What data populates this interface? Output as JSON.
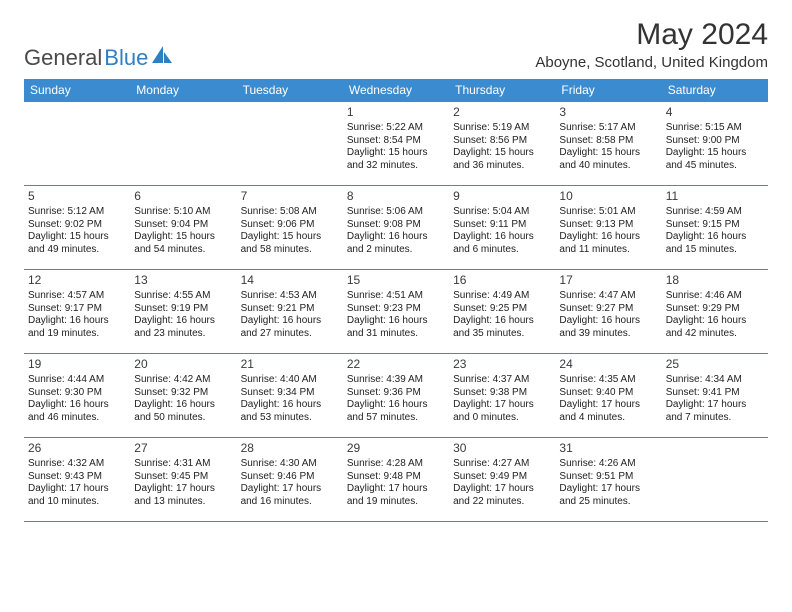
{
  "logo": {
    "word1": "General",
    "word2": "Blue",
    "iconColor": "#2f7fc5"
  },
  "title": "May 2024",
  "location": "Aboyne, Scotland, United Kingdom",
  "colors": {
    "headerBg": "#3b8bd0",
    "headerText": "#ffffff",
    "border": "#3b8bd0",
    "text": "#222222",
    "titleText": "#333333"
  },
  "typography": {
    "monthTitle_pt": 30,
    "location_pt": 15,
    "dayHeader_pt": 12,
    "dayNum_pt": 12,
    "body_pt": 10
  },
  "dayHeaders": [
    "Sunday",
    "Monday",
    "Tuesday",
    "Wednesday",
    "Thursday",
    "Friday",
    "Saturday"
  ],
  "weeks": [
    [
      null,
      null,
      null,
      {
        "d": "1",
        "sr": "5:22 AM",
        "ss": "8:54 PM",
        "dl": "15 hours and 32 minutes."
      },
      {
        "d": "2",
        "sr": "5:19 AM",
        "ss": "8:56 PM",
        "dl": "15 hours and 36 minutes."
      },
      {
        "d": "3",
        "sr": "5:17 AM",
        "ss": "8:58 PM",
        "dl": "15 hours and 40 minutes."
      },
      {
        "d": "4",
        "sr": "5:15 AM",
        "ss": "9:00 PM",
        "dl": "15 hours and 45 minutes."
      }
    ],
    [
      {
        "d": "5",
        "sr": "5:12 AM",
        "ss": "9:02 PM",
        "dl": "15 hours and 49 minutes."
      },
      {
        "d": "6",
        "sr": "5:10 AM",
        "ss": "9:04 PM",
        "dl": "15 hours and 54 minutes."
      },
      {
        "d": "7",
        "sr": "5:08 AM",
        "ss": "9:06 PM",
        "dl": "15 hours and 58 minutes."
      },
      {
        "d": "8",
        "sr": "5:06 AM",
        "ss": "9:08 PM",
        "dl": "16 hours and 2 minutes."
      },
      {
        "d": "9",
        "sr": "5:04 AM",
        "ss": "9:11 PM",
        "dl": "16 hours and 6 minutes."
      },
      {
        "d": "10",
        "sr": "5:01 AM",
        "ss": "9:13 PM",
        "dl": "16 hours and 11 minutes."
      },
      {
        "d": "11",
        "sr": "4:59 AM",
        "ss": "9:15 PM",
        "dl": "16 hours and 15 minutes."
      }
    ],
    [
      {
        "d": "12",
        "sr": "4:57 AM",
        "ss": "9:17 PM",
        "dl": "16 hours and 19 minutes."
      },
      {
        "d": "13",
        "sr": "4:55 AM",
        "ss": "9:19 PM",
        "dl": "16 hours and 23 minutes."
      },
      {
        "d": "14",
        "sr": "4:53 AM",
        "ss": "9:21 PM",
        "dl": "16 hours and 27 minutes."
      },
      {
        "d": "15",
        "sr": "4:51 AM",
        "ss": "9:23 PM",
        "dl": "16 hours and 31 minutes."
      },
      {
        "d": "16",
        "sr": "4:49 AM",
        "ss": "9:25 PM",
        "dl": "16 hours and 35 minutes."
      },
      {
        "d": "17",
        "sr": "4:47 AM",
        "ss": "9:27 PM",
        "dl": "16 hours and 39 minutes."
      },
      {
        "d": "18",
        "sr": "4:46 AM",
        "ss": "9:29 PM",
        "dl": "16 hours and 42 minutes."
      }
    ],
    [
      {
        "d": "19",
        "sr": "4:44 AM",
        "ss": "9:30 PM",
        "dl": "16 hours and 46 minutes."
      },
      {
        "d": "20",
        "sr": "4:42 AM",
        "ss": "9:32 PM",
        "dl": "16 hours and 50 minutes."
      },
      {
        "d": "21",
        "sr": "4:40 AM",
        "ss": "9:34 PM",
        "dl": "16 hours and 53 minutes."
      },
      {
        "d": "22",
        "sr": "4:39 AM",
        "ss": "9:36 PM",
        "dl": "16 hours and 57 minutes."
      },
      {
        "d": "23",
        "sr": "4:37 AM",
        "ss": "9:38 PM",
        "dl": "17 hours and 0 minutes."
      },
      {
        "d": "24",
        "sr": "4:35 AM",
        "ss": "9:40 PM",
        "dl": "17 hours and 4 minutes."
      },
      {
        "d": "25",
        "sr": "4:34 AM",
        "ss": "9:41 PM",
        "dl": "17 hours and 7 minutes."
      }
    ],
    [
      {
        "d": "26",
        "sr": "4:32 AM",
        "ss": "9:43 PM",
        "dl": "17 hours and 10 minutes."
      },
      {
        "d": "27",
        "sr": "4:31 AM",
        "ss": "9:45 PM",
        "dl": "17 hours and 13 minutes."
      },
      {
        "d": "28",
        "sr": "4:30 AM",
        "ss": "9:46 PM",
        "dl": "17 hours and 16 minutes."
      },
      {
        "d": "29",
        "sr": "4:28 AM",
        "ss": "9:48 PM",
        "dl": "17 hours and 19 minutes."
      },
      {
        "d": "30",
        "sr": "4:27 AM",
        "ss": "9:49 PM",
        "dl": "17 hours and 22 minutes."
      },
      {
        "d": "31",
        "sr": "4:26 AM",
        "ss": "9:51 PM",
        "dl": "17 hours and 25 minutes."
      },
      null
    ]
  ],
  "labels": {
    "sunrise": "Sunrise:",
    "sunset": "Sunset:",
    "daylight": "Daylight:"
  }
}
